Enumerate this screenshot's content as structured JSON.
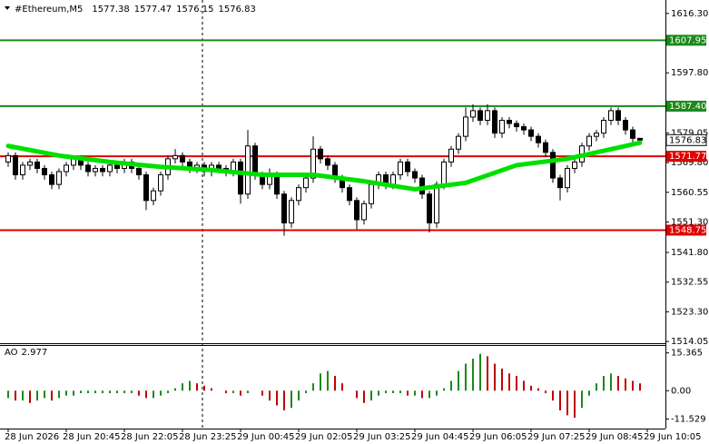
{
  "chart_data": [
    {
      "type": "candlestick",
      "title": "#Ethereum,M5",
      "xlim": [
        -1,
        90.5
      ],
      "ylim": [
        1513.5,
        1620.5
      ],
      "xticks": [
        {
          "value": 0,
          "label": "28 Jun 2026"
        },
        {
          "value": 8,
          "label": "28 Jun 20:45"
        },
        {
          "value": 16,
          "label": "28 Jun 22:05"
        },
        {
          "value": 24,
          "label": "28 Jun 23:25"
        },
        {
          "value": 32,
          "label": "29 Jun 00:45"
        },
        {
          "value": 40,
          "label": "29 Jun 02:05"
        },
        {
          "value": 48,
          "label": "29 Jun 03:25"
        },
        {
          "value": 56,
          "label": "29 Jun 04:45"
        },
        {
          "value": 64,
          "label": "29 Jun 06:05"
        },
        {
          "value": 72,
          "label": "29 Jun 07:25"
        },
        {
          "value": 80,
          "label": "29 Jun 08:45"
        },
        {
          "value": 88,
          "label": "29 Jun 10:05"
        }
      ],
      "yticks": [
        {
          "value": 1616.3,
          "label": "1616.30"
        },
        {
          "value": 1597.8,
          "label": "1597.80"
        },
        1579.05,
        {
          "value": 1569.8,
          "label": "1569.80"
        },
        1560.55,
        {
          "value": 1551.3,
          "label": "1551.30"
        },
        {
          "value": 1541.8,
          "label": "1541.80"
        },
        1532.55,
        {
          "value": 1523.3,
          "label": "1523.30"
        },
        1514.05
      ],
      "up_color": "#ffffff",
      "down_color": "#000000",
      "wick_color": "#000000",
      "open": [
        1570,
        1572,
        1566,
        1569,
        1570,
        1568,
        1566,
        1563,
        1567,
        1569,
        1571,
        1569,
        1567,
        1568,
        1567,
        1569,
        1568,
        1570,
        1568,
        1566,
        1558,
        1561,
        1566,
        1571,
        1572,
        1570,
        1568,
        1569,
        1567,
        1569,
        1568,
        1567,
        1570,
        1560,
        1575,
        1566,
        1563,
        1566,
        1560,
        1551,
        1558,
        1562,
        1565,
        1574,
        1571,
        1569,
        1565,
        1562,
        1558,
        1552,
        1557,
        1563,
        1566,
        1563,
        1566,
        1570,
        1567,
        1565,
        1560,
        1551,
        1563,
        1570,
        1574,
        1578,
        1584,
        1586,
        1583,
        1586,
        1579,
        1583,
        1582,
        1581,
        1580,
        1578,
        1576,
        1573,
        1565,
        1562,
        1568,
        1570,
        1575,
        1578,
        1579,
        1583,
        1586,
        1583,
        1580,
        1577.38
      ],
      "high": [
        1573,
        1573,
        1570,
        1571,
        1571,
        1569,
        1567,
        1568,
        1570,
        1572,
        1572,
        1570,
        1569,
        1569,
        1570,
        1570,
        1571,
        1571,
        1569,
        1567,
        1562,
        1567,
        1572,
        1574,
        1573,
        1571,
        1570,
        1570,
        1570,
        1570,
        1569,
        1571,
        1571,
        1580,
        1576,
        1567,
        1568,
        1567,
        1561,
        1559,
        1563,
        1566,
        1578,
        1575,
        1572,
        1570,
        1566,
        1563,
        1559,
        1558,
        1564,
        1567,
        1567,
        1567,
        1571,
        1571,
        1568,
        1566,
        1561,
        1564,
        1571,
        1575,
        1579,
        1587,
        1588,
        1587,
        1588,
        1587,
        1584,
        1584,
        1583,
        1582,
        1581,
        1579,
        1577,
        1574,
        1566,
        1569,
        1571,
        1576,
        1579,
        1580,
        1584,
        1587,
        1587,
        1584,
        1581,
        1577.47
      ],
      "low": [
        1568.5,
        1564.5,
        1564.5,
        1567.5,
        1566.5,
        1564.5,
        1561.5,
        1561.5,
        1565.5,
        1567.5,
        1567.5,
        1565.5,
        1565.5,
        1565.5,
        1565.5,
        1566.5,
        1566.5,
        1566.5,
        1564.5,
        1555,
        1556.5,
        1559.5,
        1564.5,
        1569.5,
        1568.5,
        1566.5,
        1566.5,
        1565.5,
        1565.5,
        1566.5,
        1565.5,
        1565.5,
        1557,
        1558.5,
        1564.5,
        1561.5,
        1561.5,
        1558.5,
        1547,
        1549.5,
        1556.5,
        1560.5,
        1563.5,
        1569.5,
        1567.5,
        1563.5,
        1560.5,
        1556.5,
        1549,
        1550.5,
        1555.5,
        1561.5,
        1561.5,
        1561.5,
        1564.5,
        1565.5,
        1563.5,
        1558.5,
        1548,
        1549.5,
        1561.5,
        1568.5,
        1572.5,
        1576.5,
        1582.5,
        1581.5,
        1581.5,
        1577.5,
        1577.5,
        1580.5,
        1579.5,
        1578.5,
        1576.5,
        1574.5,
        1571.5,
        1563.5,
        1558,
        1560.5,
        1566.5,
        1568.5,
        1573.5,
        1576.5,
        1577.5,
        1581.5,
        1581.5,
        1578.5,
        1576,
        1576.15
      ],
      "close": [
        1572,
        1566,
        1569,
        1570,
        1568,
        1566,
        1563,
        1567,
        1569,
        1571,
        1569,
        1567,
        1568,
        1567,
        1569,
        1568,
        1570,
        1568,
        1566,
        1558,
        1561,
        1566,
        1571,
        1572,
        1570,
        1568,
        1569,
        1567,
        1569,
        1568,
        1567,
        1570,
        1560,
        1575,
        1566,
        1563,
        1566,
        1560,
        1551,
        1558,
        1562,
        1565,
        1574,
        1571,
        1569,
        1565,
        1562,
        1558,
        1552,
        1557,
        1563,
        1566,
        1563,
        1566,
        1570,
        1567,
        1565,
        1560,
        1551,
        1563,
        1570,
        1574,
        1578,
        1584,
        1586,
        1583,
        1586,
        1579,
        1583,
        1582,
        1581,
        1580,
        1578,
        1576,
        1573,
        1565,
        1562,
        1568,
        1570,
        1575,
        1578,
        1579,
        1583,
        1586,
        1583,
        1580,
        1577.38,
        1576.83
      ],
      "ma": {
        "color": "#00e000",
        "x": [
          0,
          7,
          14,
          21,
          28,
          35,
          42,
          49,
          56,
          63,
          70,
          77,
          84,
          87
        ],
        "values": [
          1575,
          1572,
          1570,
          1568.5,
          1567.5,
          1566,
          1566,
          1564,
          1561.5,
          1563.5,
          1569,
          1571,
          1574.5,
          1576
        ]
      },
      "levels": [
        {
          "value": 1607.95,
          "color": "#1a8a1a"
        },
        {
          "value": 1587.4,
          "label": "1587.40",
          "color": "#1a8a1a"
        },
        {
          "value": 1571.77,
          "color": "#e00000"
        },
        {
          "value": 1548.75,
          "color": "#e00000"
        }
      ]
    },
    {
      "type": "bar",
      "title": "AO",
      "ylim": [
        -15.4,
        18.2
      ],
      "yticks": [
        15.365,
        {
          "value": 0,
          "label": "0.00"
        },
        -11.529
      ],
      "up_color": "#1a8a1a",
      "down_color": "#c00000",
      "values": [
        -3,
        -4,
        -4,
        -5,
        -4,
        -3,
        -4,
        -3,
        -2,
        -2,
        -1,
        -1,
        -1,
        -1,
        -1,
        -1,
        -1,
        -1,
        -2,
        -3,
        -3,
        -2,
        -1,
        1,
        3,
        4,
        3,
        2,
        1,
        0,
        -1,
        -1,
        -2,
        -1,
        0,
        -2,
        -4,
        -6,
        -8,
        -7,
        -4,
        -1,
        3,
        7,
        8,
        6,
        3,
        0,
        -3,
        -5,
        -4,
        -2,
        -1,
        -1,
        -1,
        -2,
        -2,
        -3,
        -3,
        -2,
        1,
        4,
        8,
        11,
        13,
        15,
        14,
        11,
        9,
        7,
        6,
        4,
        2,
        1,
        -1,
        -4,
        -8,
        -10,
        -11,
        -7,
        -2,
        3,
        6,
        7,
        6,
        5,
        4,
        2.977
      ]
    }
  ]
}
